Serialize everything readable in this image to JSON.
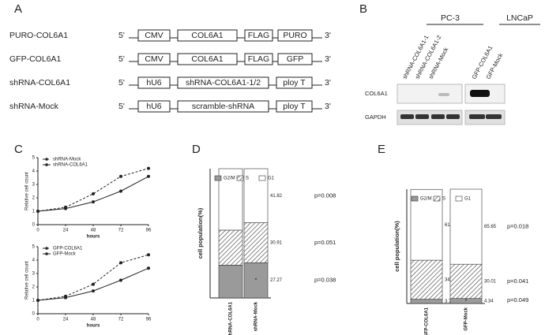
{
  "panel_labels": [
    "A",
    "B",
    "C",
    "D",
    "E"
  ],
  "constructs": [
    {
      "name": "PURO-COL6A1",
      "five": "5'",
      "elements": [
        "CMV",
        "COL6A1",
        "FLAG",
        "PURO"
      ],
      "three": "3'"
    },
    {
      "name": "GFP-COL6A1",
      "five": "5'",
      "elements": [
        "CMV",
        "COL6A1",
        "FLAG",
        "GFP"
      ],
      "three": "3'"
    },
    {
      "name": "shRNA-COL6A1",
      "five": "5'",
      "elements": [
        "hU6",
        "shRNA-COL6A1-1/2",
        "ploy T"
      ],
      "three": "3'"
    },
    {
      "name": "shRNA-Mock",
      "five": "5'",
      "elements": [
        "hU6",
        "scramble-shRNA",
        "ploy T"
      ],
      "three": "3'"
    }
  ],
  "blot": {
    "groups": [
      "PC-3",
      "LNCaP"
    ],
    "lanes": [
      "shRNA-COL6A1-1",
      "shRNA-COL6A1-2",
      "shRNA-Mock",
      "GFP-COL6A1",
      "GFP-Mock"
    ],
    "rows": [
      "COL6A1",
      "GAPDH"
    ]
  },
  "chart_data": [
    {
      "type": "line",
      "x": [
        0,
        24,
        48,
        72,
        96
      ],
      "xlim": [
        0,
        96
      ],
      "xticks": [
        0,
        24,
        48,
        72,
        96
      ],
      "ylim": [
        0,
        5
      ],
      "yticks": [
        0,
        1,
        2,
        3,
        4,
        5
      ],
      "xlabel": "hours",
      "ylabel": "Relative cell count",
      "series": [
        {
          "name": "shRNA-Mock",
          "color": "#222",
          "dashed": true,
          "values": [
            1,
            1.3,
            2.3,
            3.6,
            4.2
          ]
        },
        {
          "name": "shRNA-COL6A1",
          "color": "#222",
          "dashed": false,
          "values": [
            1,
            1.2,
            1.7,
            2.5,
            3.6
          ]
        }
      ]
    },
    {
      "type": "line",
      "x": [
        0,
        24,
        48,
        72,
        96
      ],
      "xlim": [
        0,
        96
      ],
      "xticks": [
        0,
        24,
        48,
        72,
        96
      ],
      "ylim": [
        0,
        5
      ],
      "yticks": [
        0,
        1,
        2,
        3,
        4,
        5
      ],
      "xlabel": "hours",
      "ylabel": "Relative cell count",
      "series": [
        {
          "name": "GFP-COL6A1",
          "color": "#222",
          "dashed": true,
          "values": [
            1,
            1.3,
            2.2,
            3.8,
            4.4
          ]
        },
        {
          "name": "GFP-Mock",
          "color": "#222",
          "dashed": false,
          "values": [
            1,
            1.2,
            1.7,
            2.5,
            3.4
          ]
        }
      ]
    },
    {
      "type": "stacked_bar",
      "categories": [
        "shRNA-COL6A1",
        "shRNA-Mock"
      ],
      "ylim": [
        0,
        100
      ],
      "ylabel": "cell population(%)",
      "series": [
        {
          "name": "G2/M",
          "color": "#9a9a9a",
          "values": [
            25.43,
            27.27
          ]
        },
        {
          "name": "S",
          "color": "hatch",
          "values": [
            27.03,
            30.91
          ]
        },
        {
          "name": "G1",
          "color": "#ffffff",
          "values": [
            47.54,
            41.82
          ]
        }
      ],
      "pvalues": [
        "p=0.038",
        "p=0.051",
        "p=0.008"
      ],
      "star": "*"
    },
    {
      "type": "stacked_bar",
      "categories": [
        "GFP-COL6A1",
        "GFP-Mock"
      ],
      "ylim": [
        0,
        100
      ],
      "ylabel": "cell population(%)",
      "series": [
        {
          "name": "G2/M",
          "color": "#9a9a9a",
          "values": [
            3.71,
            4.34
          ]
        },
        {
          "name": "S",
          "color": "hatch",
          "values": [
            34.15,
            30.01
          ]
        },
        {
          "name": "G1",
          "color": "#ffffff",
          "values": [
            61.96,
            65.65
          ]
        }
      ],
      "pvalues": [
        "p=0.049",
        "p=0.041",
        "p=0.018"
      ],
      "star": "*"
    }
  ]
}
